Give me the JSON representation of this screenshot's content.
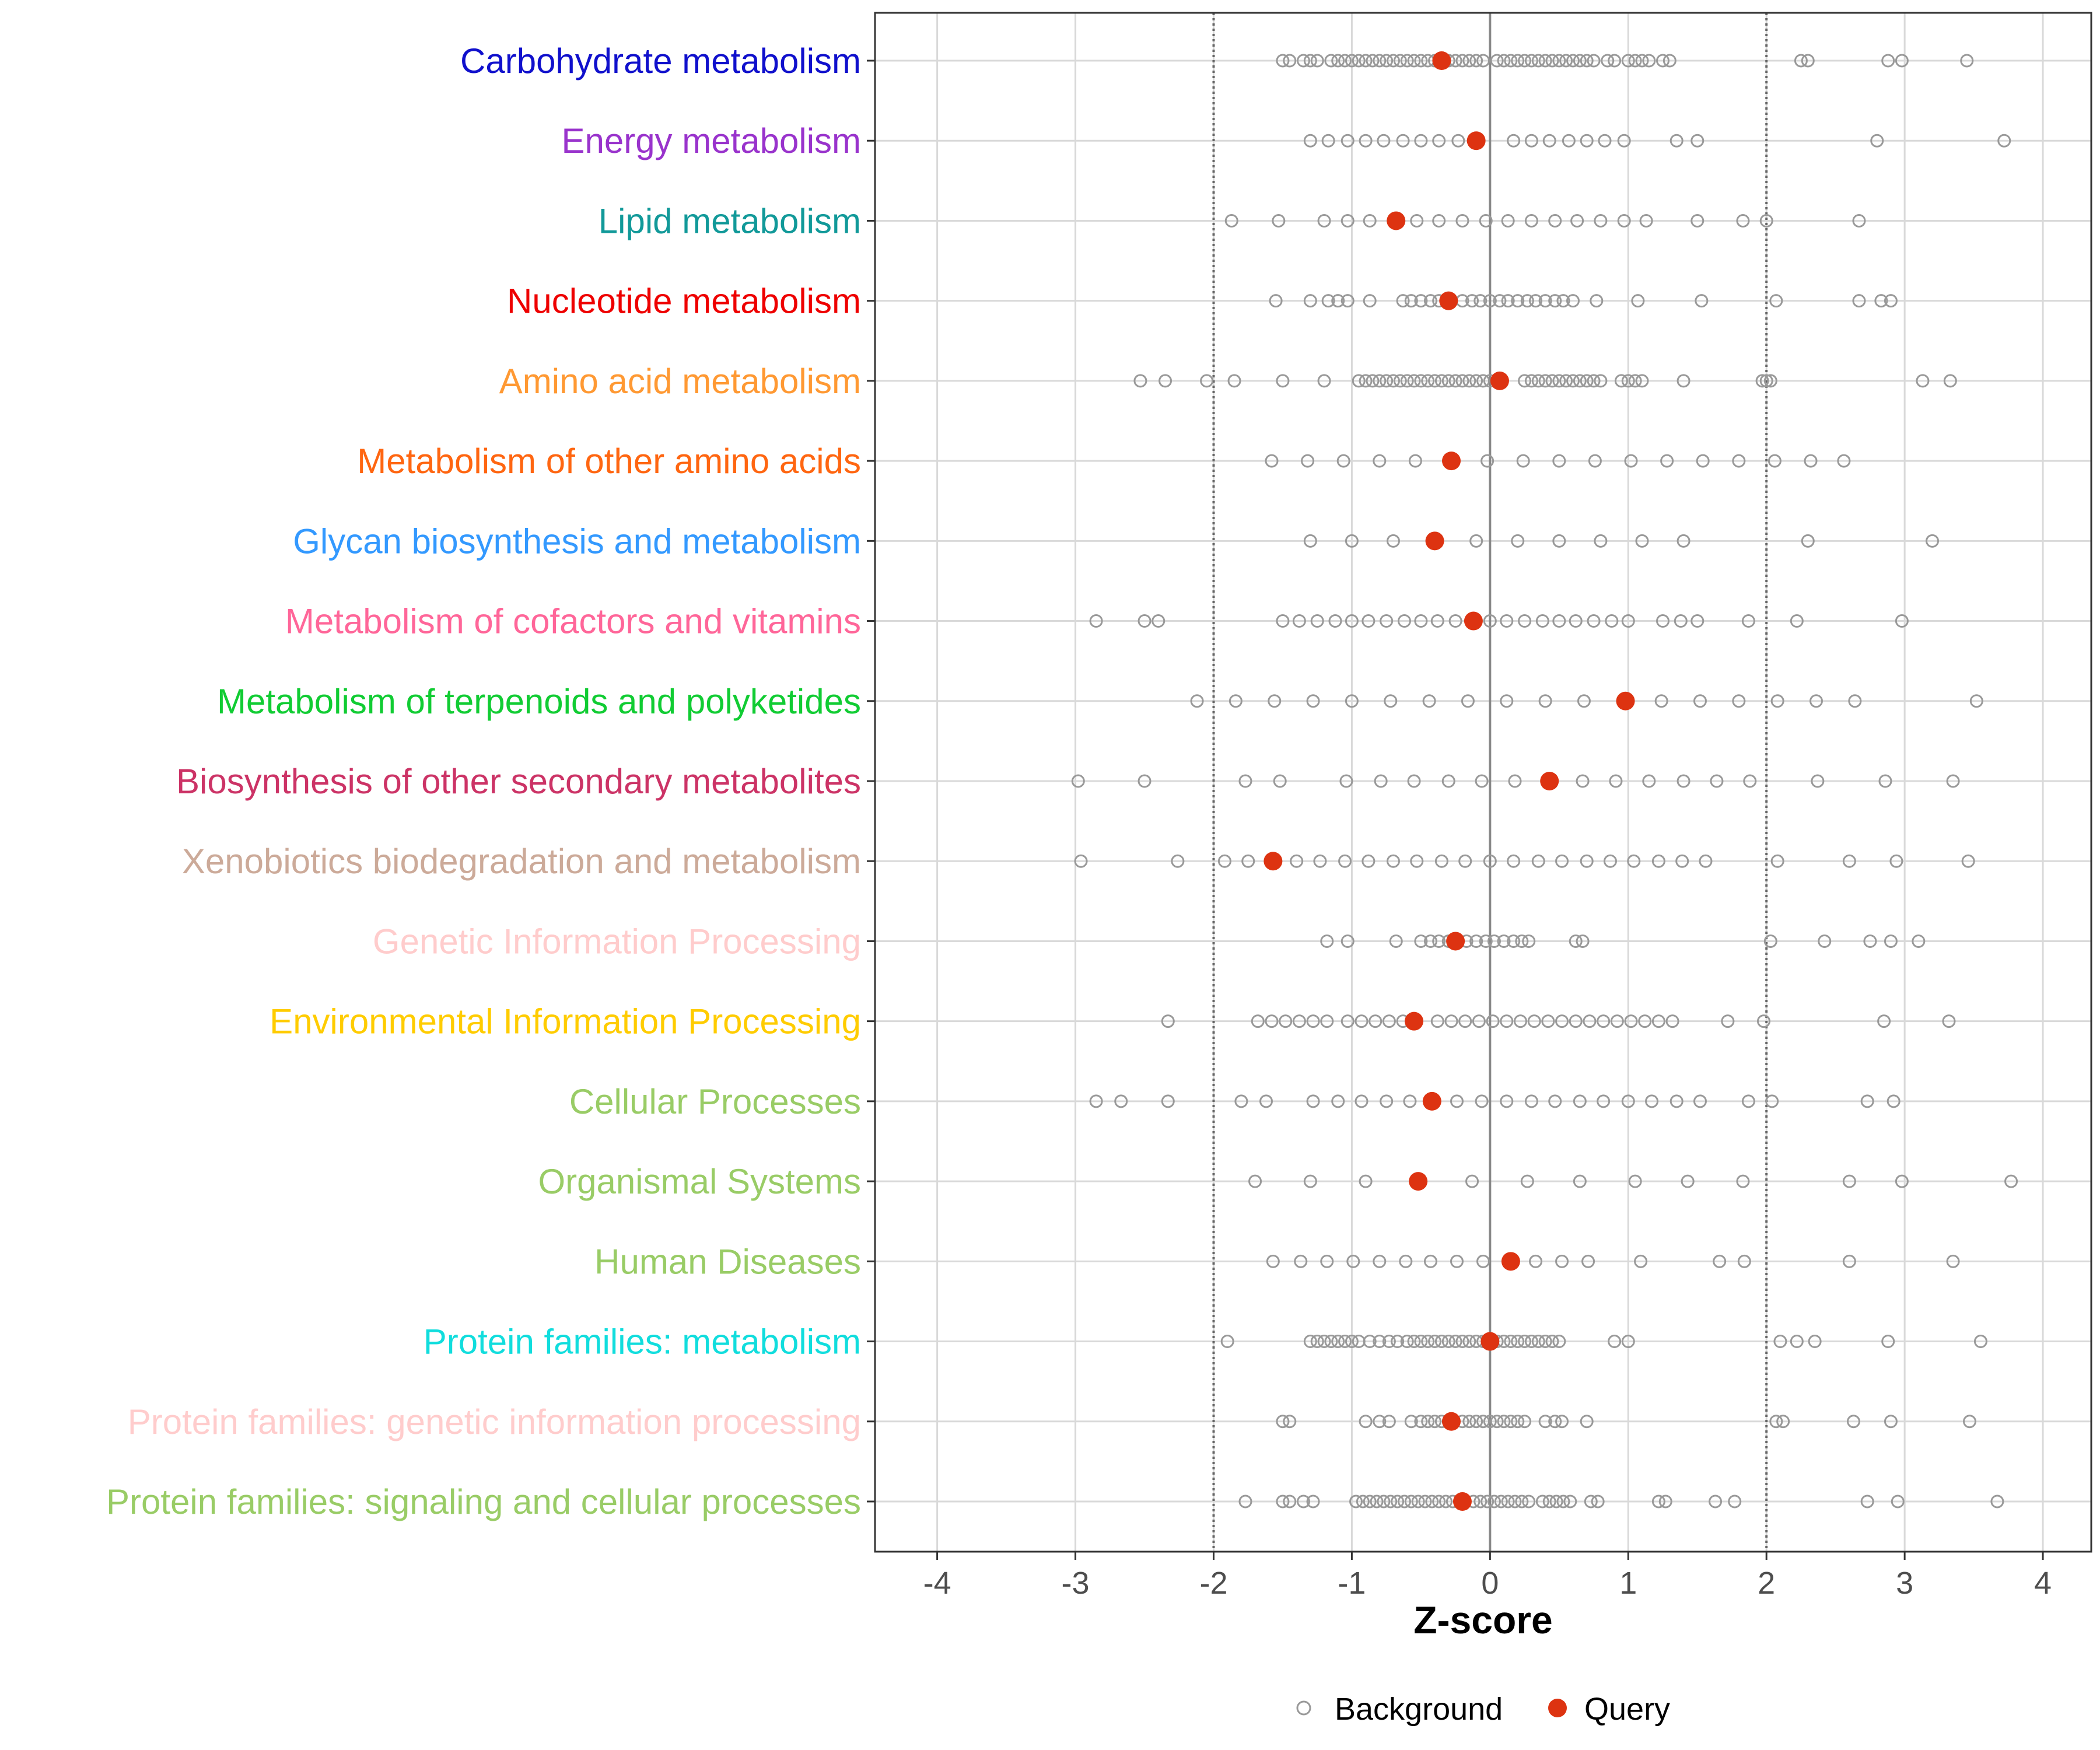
{
  "chart_data": {
    "type": "scatter",
    "xlabel": "Z-score",
    "xlim": [
      -4.45,
      4.35
    ],
    "x_ticks": [
      "-4",
      "-3",
      "-2",
      "-1",
      "0",
      "1",
      "2",
      "3",
      "4"
    ],
    "vlines_dotted": [
      -2,
      2
    ],
    "vline_solid": 0,
    "colors": {
      "background": "#999999",
      "query": "#dd3311",
      "grid": "#d9d9d9"
    },
    "legend": [
      {
        "key": "background",
        "label": "Background"
      },
      {
        "key": "query",
        "label": "Query"
      }
    ],
    "categories": [
      {
        "name": "Carbohydrate metabolism",
        "color": "#1010cc",
        "query": -0.35,
        "background": [
          -1.5,
          -1.45,
          -1.35,
          -1.3,
          -1.25,
          -1.15,
          -1.1,
          -1.05,
          -1.0,
          -0.95,
          -0.9,
          -0.85,
          -0.8,
          -0.75,
          -0.7,
          -0.65,
          -0.6,
          -0.55,
          -0.5,
          -0.45,
          -0.4,
          -0.3,
          -0.25,
          -0.2,
          -0.15,
          -0.1,
          -0.05,
          0.05,
          0.1,
          0.15,
          0.2,
          0.25,
          0.3,
          0.35,
          0.4,
          0.45,
          0.5,
          0.55,
          0.6,
          0.65,
          0.7,
          0.75,
          0.85,
          0.9,
          1.0,
          1.05,
          1.1,
          1.15,
          1.25,
          1.3,
          2.25,
          2.3,
          2.88,
          2.98,
          3.45
        ]
      },
      {
        "name": "Energy metabolism",
        "color": "#9933cc",
        "query": -0.1,
        "background": [
          -1.3,
          -1.17,
          -1.03,
          -0.9,
          -0.77,
          -0.63,
          -0.5,
          -0.37,
          -0.23,
          0.17,
          0.3,
          0.43,
          0.57,
          0.7,
          0.83,
          0.97,
          1.35,
          1.5,
          2.8,
          3.72
        ]
      },
      {
        "name": "Lipid metabolism",
        "color": "#119999",
        "query": -0.68,
        "background": [
          -1.87,
          -1.53,
          -1.2,
          -1.03,
          -0.87,
          -0.53,
          -0.37,
          -0.2,
          -0.03,
          0.13,
          0.3,
          0.47,
          0.63,
          0.8,
          0.97,
          1.13,
          1.5,
          1.83,
          2.0,
          2.67
        ]
      },
      {
        "name": "Nucleotide metabolism",
        "color": "#ee0000",
        "query": -0.3,
        "background": [
          -1.55,
          -1.3,
          -1.17,
          -1.1,
          -1.03,
          -0.87,
          -0.63,
          -0.57,
          -0.5,
          -0.43,
          -0.37,
          -0.2,
          -0.13,
          -0.07,
          0.0,
          0.07,
          0.13,
          0.2,
          0.27,
          0.33,
          0.4,
          0.47,
          0.53,
          0.6,
          0.77,
          1.07,
          1.53,
          2.07,
          2.67,
          2.83,
          2.9
        ]
      },
      {
        "name": "Amino acid metabolism",
        "color": "#ff9933",
        "query": 0.07,
        "background": [
          -2.53,
          -2.35,
          -2.05,
          -1.85,
          -1.5,
          -1.2,
          -0.95,
          -0.9,
          -0.85,
          -0.8,
          -0.75,
          -0.7,
          -0.65,
          -0.6,
          -0.55,
          -0.5,
          -0.45,
          -0.4,
          -0.35,
          -0.3,
          -0.25,
          -0.2,
          -0.15,
          -0.1,
          -0.05,
          0.0,
          0.05,
          0.25,
          0.3,
          0.35,
          0.4,
          0.45,
          0.5,
          0.55,
          0.6,
          0.65,
          0.7,
          0.75,
          0.8,
          0.95,
          1.0,
          1.05,
          1.1,
          1.4,
          1.97,
          2.0,
          2.03,
          3.13,
          3.33
        ]
      },
      {
        "name": "Metabolism of other amino acids",
        "color": "#ff6611",
        "query": -0.28,
        "background": [
          -1.58,
          -1.32,
          -1.06,
          -0.8,
          -0.54,
          -0.02,
          0.24,
          0.5,
          0.76,
          1.02,
          1.28,
          1.54,
          1.8,
          2.06,
          2.32,
          2.56
        ]
      },
      {
        "name": "Glycan biosynthesis and metabolism",
        "color": "#3399ff",
        "query": -0.4,
        "background": [
          -1.3,
          -1.0,
          -0.7,
          -0.1,
          0.2,
          0.5,
          0.8,
          1.1,
          1.4,
          2.3,
          3.2
        ]
      },
      {
        "name": "Metabolism of cofactors and vitamins",
        "color": "#ff6699",
        "query": -0.12,
        "background": [
          -2.85,
          -2.5,
          -2.4,
          -1.5,
          -1.38,
          -1.25,
          -1.12,
          -1.0,
          -0.88,
          -0.75,
          -0.62,
          -0.5,
          -0.38,
          -0.25,
          0.0,
          0.12,
          0.25,
          0.38,
          0.5,
          0.62,
          0.75,
          0.88,
          1.0,
          1.25,
          1.38,
          1.5,
          1.87,
          2.22,
          2.98
        ]
      },
      {
        "name": "Metabolism of terpenoids and polyketides",
        "color": "#11cc33",
        "query": 0.98,
        "background": [
          -2.12,
          -1.84,
          -1.56,
          -1.28,
          -1.0,
          -0.72,
          -0.44,
          -0.16,
          0.12,
          0.4,
          0.68,
          1.24,
          1.52,
          1.8,
          2.08,
          2.36,
          2.64,
          3.52
        ]
      },
      {
        "name": "Biosynthesis of other secondary metabolites",
        "color": "#cc3366",
        "query": 0.43,
        "background": [
          -2.98,
          -2.5,
          -1.77,
          -1.52,
          -1.04,
          -0.79,
          -0.55,
          -0.3,
          -0.06,
          0.18,
          0.67,
          0.91,
          1.15,
          1.4,
          1.64,
          1.88,
          2.37,
          2.86,
          3.35
        ]
      },
      {
        "name": "Xenobiotics biodegradation and metabolism",
        "color": "#ccaa99",
        "query": -1.57,
        "background": [
          -2.96,
          -2.26,
          -1.92,
          -1.75,
          -1.4,
          -1.23,
          -1.05,
          -0.88,
          -0.7,
          -0.53,
          -0.35,
          -0.18,
          0.0,
          0.17,
          0.35,
          0.52,
          0.7,
          0.87,
          1.04,
          1.22,
          1.39,
          1.56,
          2.08,
          2.6,
          2.94,
          3.46
        ]
      },
      {
        "name": "Genetic Information Processing",
        "color": "#ffcccc",
        "query": -0.25,
        "background": [
          -1.18,
          -1.03,
          -0.68,
          -0.5,
          -0.43,
          -0.37,
          -0.3,
          -0.17,
          -0.1,
          -0.03,
          0.03,
          0.1,
          0.17,
          0.23,
          0.28,
          0.62,
          0.67,
          2.03,
          2.42,
          2.75,
          2.9,
          3.1
        ]
      },
      {
        "name": "Environmental Information Processing",
        "color": "#ffcc00",
        "query": -0.55,
        "background": [
          -2.33,
          -1.68,
          -1.58,
          -1.48,
          -1.38,
          -1.28,
          -1.18,
          -1.03,
          -0.93,
          -0.83,
          -0.73,
          -0.63,
          -0.38,
          -0.28,
          -0.18,
          -0.08,
          0.02,
          0.12,
          0.22,
          0.32,
          0.42,
          0.52,
          0.62,
          0.72,
          0.82,
          0.92,
          1.02,
          1.12,
          1.22,
          1.32,
          1.72,
          1.98,
          2.85,
          3.32
        ]
      },
      {
        "name": "Cellular Processes",
        "color": "#99cc66",
        "query": -0.42,
        "background": [
          -2.85,
          -2.67,
          -2.33,
          -1.8,
          -1.62,
          -1.28,
          -1.1,
          -0.93,
          -0.75,
          -0.58,
          -0.24,
          -0.06,
          0.12,
          0.3,
          0.47,
          0.65,
          0.82,
          1.0,
          1.17,
          1.35,
          1.52,
          1.87,
          2.04,
          2.73,
          2.92
        ]
      },
      {
        "name": "Organismal Systems",
        "color": "#99cc66",
        "query": -0.52,
        "background": [
          -1.7,
          -1.3,
          -0.9,
          -0.13,
          0.27,
          0.65,
          1.05,
          1.43,
          1.83,
          2.6,
          2.98,
          3.77
        ]
      },
      {
        "name": "Human Diseases",
        "color": "#99cc66",
        "query": 0.15,
        "background": [
          -1.57,
          -1.37,
          -1.18,
          -0.99,
          -0.8,
          -0.61,
          -0.43,
          -0.24,
          -0.05,
          0.33,
          0.52,
          0.71,
          1.09,
          1.66,
          1.84,
          2.6,
          3.35
        ]
      },
      {
        "name": "Protein families: metabolism",
        "color": "#11dddd",
        "query": 0.0,
        "background": [
          -1.9,
          -1.3,
          -1.25,
          -1.2,
          -1.15,
          -1.1,
          -1.05,
          -1.0,
          -0.95,
          -0.87,
          -0.8,
          -0.73,
          -0.67,
          -0.6,
          -0.55,
          -0.5,
          -0.45,
          -0.4,
          -0.35,
          -0.3,
          -0.25,
          -0.2,
          -0.15,
          -0.1,
          -0.05,
          0.05,
          0.1,
          0.15,
          0.2,
          0.25,
          0.3,
          0.35,
          0.4,
          0.45,
          0.5,
          0.9,
          1.0,
          2.1,
          2.22,
          2.35,
          2.88,
          3.55
        ]
      },
      {
        "name": "Protein families: genetic information processing",
        "color": "#ffcccc",
        "query": -0.28,
        "background": [
          -1.5,
          -1.45,
          -0.9,
          -0.8,
          -0.73,
          -0.57,
          -0.5,
          -0.45,
          -0.4,
          -0.35,
          -0.3,
          -0.2,
          -0.15,
          -0.1,
          -0.05,
          0.0,
          0.05,
          0.1,
          0.15,
          0.2,
          0.25,
          0.4,
          0.47,
          0.52,
          0.7,
          2.07,
          2.12,
          2.63,
          2.9,
          3.47
        ]
      },
      {
        "name": "Protein families: signaling and cellular processes",
        "color": "#99cc66",
        "query": -0.2,
        "background": [
          -1.77,
          -1.5,
          -1.45,
          -1.35,
          -1.28,
          -0.97,
          -0.92,
          -0.87,
          -0.82,
          -0.77,
          -0.72,
          -0.67,
          -0.62,
          -0.57,
          -0.52,
          -0.47,
          -0.42,
          -0.37,
          -0.32,
          -0.27,
          -0.12,
          -0.07,
          -0.02,
          0.03,
          0.08,
          0.13,
          0.18,
          0.23,
          0.28,
          0.38,
          0.43,
          0.48,
          0.53,
          0.58,
          0.73,
          0.78,
          1.22,
          1.27,
          1.63,
          1.77,
          2.73,
          2.95,
          3.67
        ]
      }
    ]
  }
}
